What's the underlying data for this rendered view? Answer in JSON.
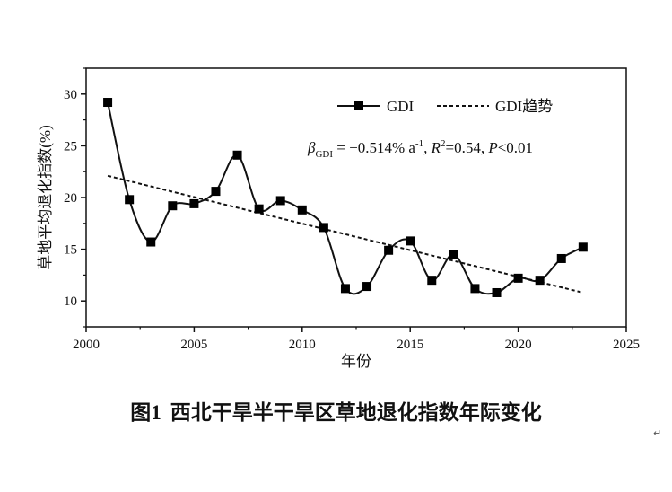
{
  "chart_data": {
    "type": "line",
    "xlabel": "年份",
    "ylabel": "草地平均退化指数(%)",
    "xlim": [
      2000,
      2025
    ],
    "ylim": [
      7.5,
      32.5
    ],
    "xticks": [
      2000,
      2005,
      2010,
      2015,
      2020,
      2025
    ],
    "yticks": [
      10,
      15,
      20,
      25,
      30
    ],
    "x": [
      2001,
      2002,
      2003,
      2004,
      2005,
      2006,
      2007,
      2008,
      2009,
      2010,
      2011,
      2012,
      2013,
      2014,
      2015,
      2016,
      2017,
      2018,
      2019,
      2020,
      2021,
      2022,
      2023
    ],
    "series": [
      {
        "name": "GDI",
        "values": [
          29.2,
          19.8,
          15.7,
          19.2,
          19.4,
          20.6,
          24.1,
          18.9,
          19.7,
          18.8,
          17.1,
          11.2,
          11.4,
          14.9,
          15.8,
          12.0,
          14.5,
          11.2,
          10.8,
          12.2,
          12.0,
          14.1,
          15.2
        ]
      },
      {
        "name": "GDI趋势",
        "x": [
          2001,
          2023
        ],
        "values": [
          22.1,
          10.8
        ]
      }
    ],
    "legend": [
      "GDI",
      "GDI趋势"
    ],
    "annotation": {
      "beta": "β",
      "beta_sub": "GDI",
      "text1": " = −0.514% a",
      "text1_sup": "-1",
      "r": ", R",
      "r_sup": "2",
      "text2": "=0.54, ",
      "p": "P",
      "text3": "<0.01"
    },
    "colors": {
      "line": "#111111",
      "marker": "#000000",
      "trend": "#111111"
    }
  },
  "caption": {
    "label": "图1",
    "text": "西北干旱半干旱区草地退化指数年际变化"
  },
  "return_mark": "↵"
}
